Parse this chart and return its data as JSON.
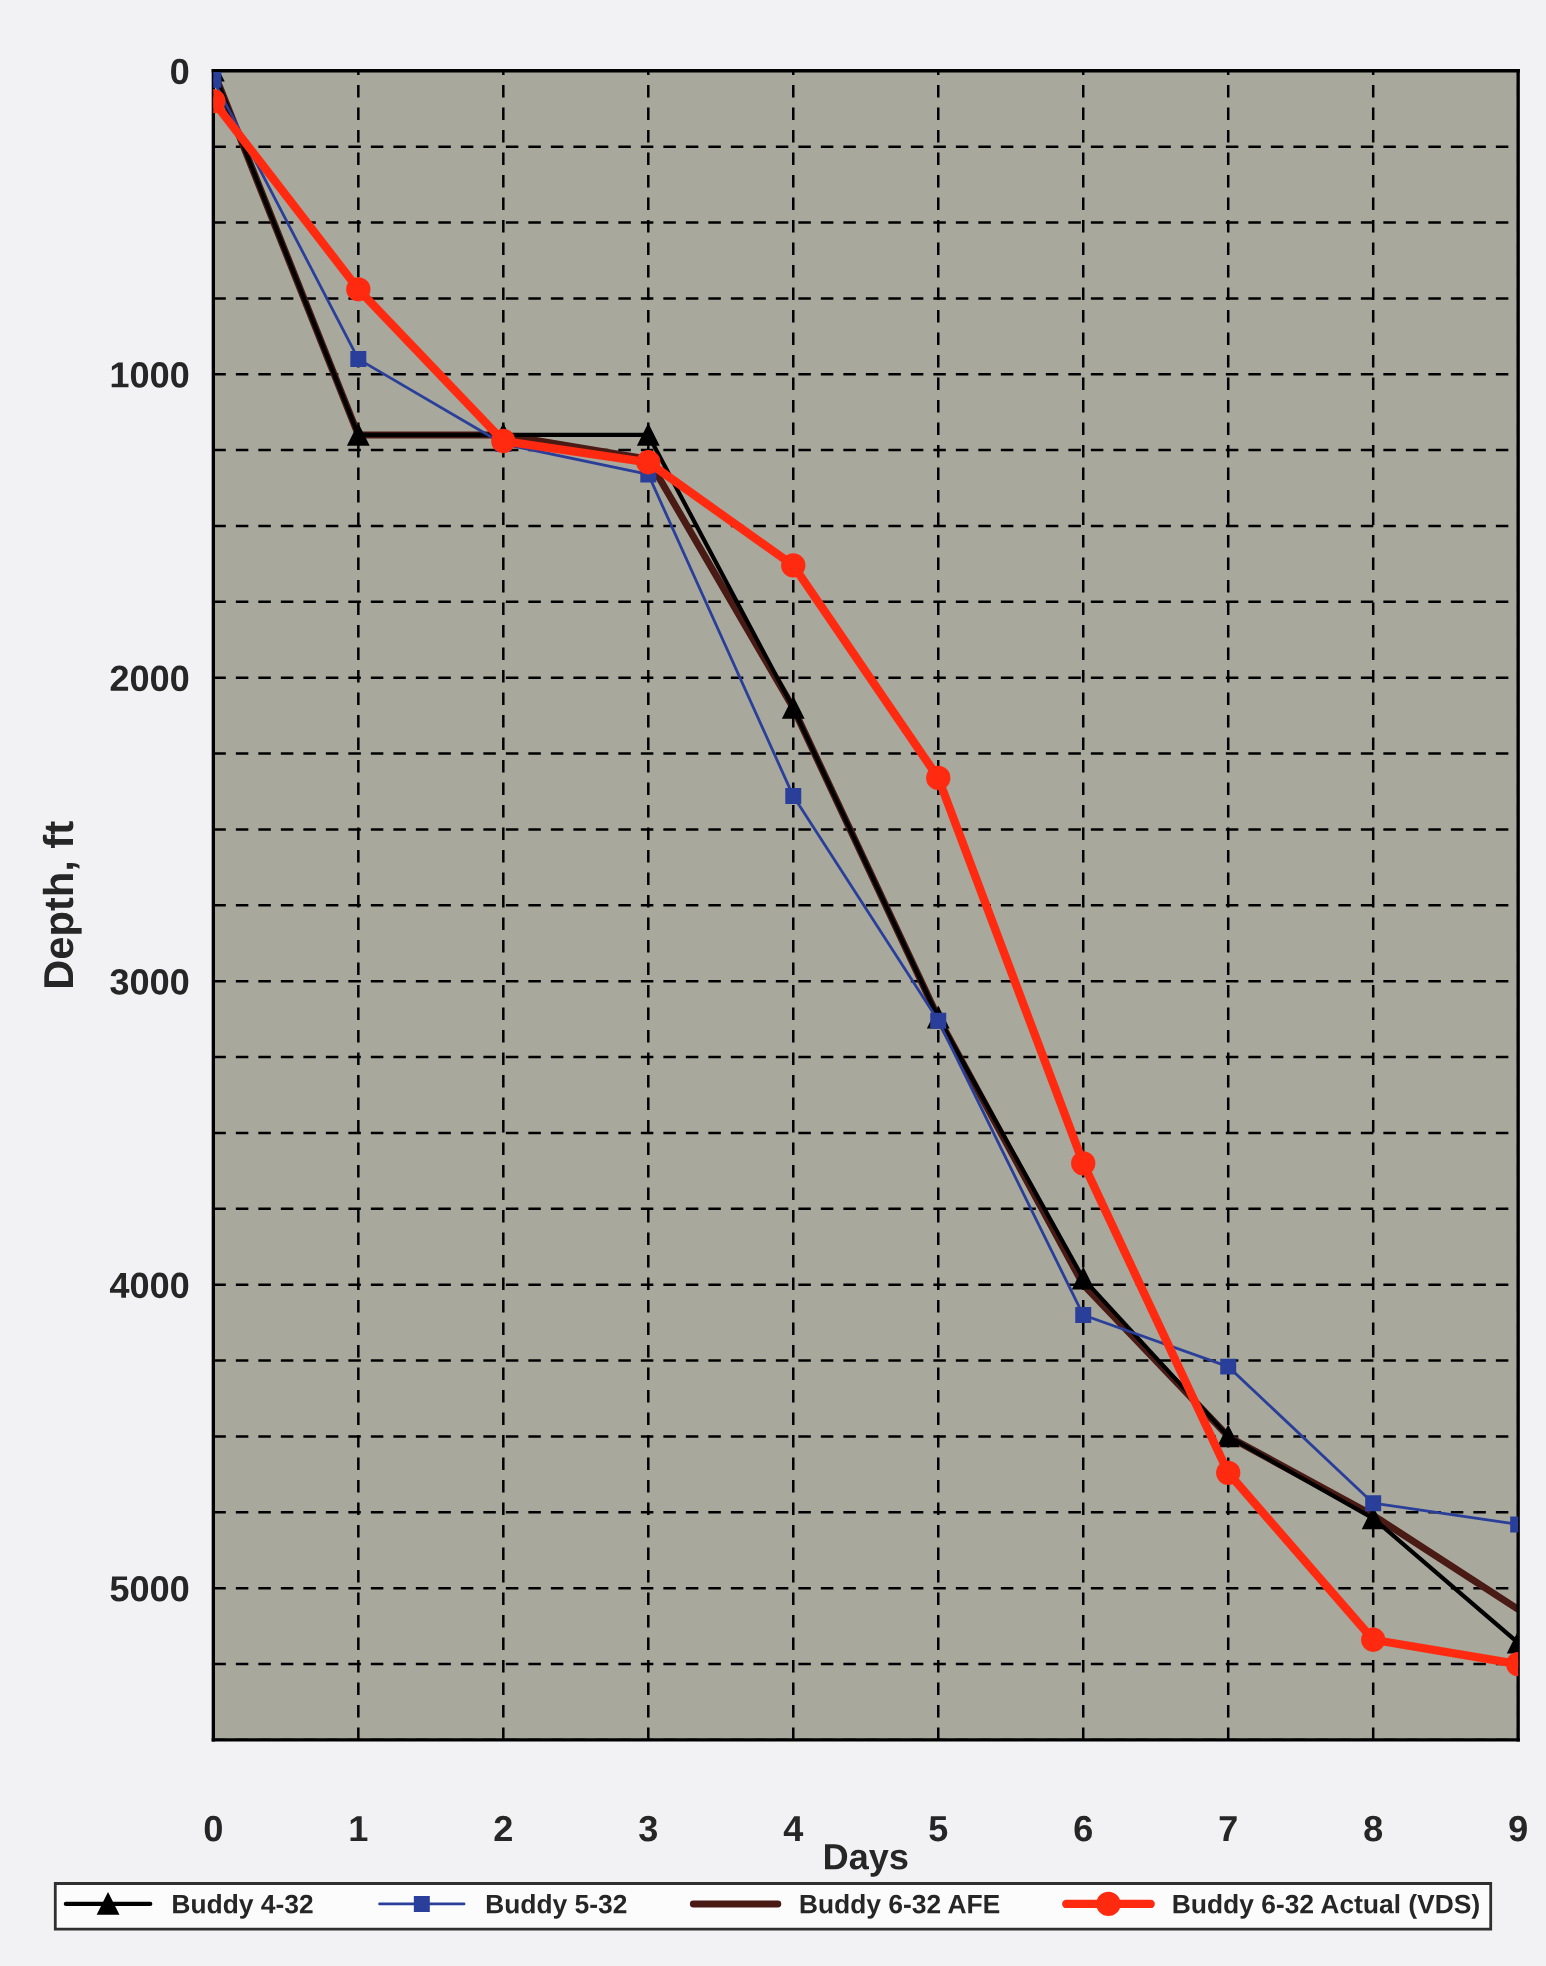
{
  "chart_data": {
    "type": "line",
    "xlabel": "Days",
    "ylabel": "Depth, ft",
    "x": [
      0,
      1,
      2,
      3,
      4,
      5,
      6,
      7,
      8,
      9
    ],
    "xlim": [
      0,
      9
    ],
    "xticks": [
      0,
      1,
      2,
      3,
      4,
      5,
      6,
      7,
      8,
      9
    ],
    "ylim": [
      5500,
      0
    ],
    "yticks": [
      0,
      {
        "value": 250,
        "label": null
      },
      {
        "value": 500,
        "label": null
      },
      {
        "value": 750,
        "label": null
      },
      1000,
      {
        "value": 1250,
        "label": null
      },
      {
        "value": 1500,
        "label": null
      },
      {
        "value": 1750,
        "label": null
      },
      2000,
      {
        "value": 2250,
        "label": null
      },
      {
        "value": 2500,
        "label": null
      },
      {
        "value": 2750,
        "label": null
      },
      3000,
      {
        "value": 3250,
        "label": null
      },
      {
        "value": 3500,
        "label": null
      },
      {
        "value": 3750,
        "label": null
      },
      4000,
      {
        "value": 4250,
        "label": null
      },
      {
        "value": 4500,
        "label": null
      },
      {
        "value": 4750,
        "label": null
      },
      5000,
      {
        "value": 5250,
        "label": null
      },
      {
        "value": 5500,
        "label": null
      }
    ],
    "grid": true,
    "legend": "bottom",
    "line_style": "solid",
    "series": [
      {
        "name": "Buddy 4-32",
        "color": "#000000",
        "marker": "triangle",
        "values": [
          0,
          1200,
          1200,
          1200,
          2100,
          3120,
          3980,
          4500,
          4770,
          5180
        ]
      },
      {
        "name": "Buddy 5-32",
        "color": "#2a3f9a",
        "marker": "square",
        "values": [
          30,
          950,
          1230,
          1330,
          2390,
          3130,
          4100,
          4270,
          4720,
          4790
        ]
      },
      {
        "name": "Buddy 6-32 AFE",
        "color": "#4a1a14",
        "marker": "none",
        "values": [
          0,
          1200,
          1200,
          1280,
          2100,
          3120,
          4000,
          4500,
          4760,
          5070
        ]
      },
      {
        "name": "Buddy 6-32 Actual (VDS)",
        "color": "#ff2a10",
        "marker": "circle",
        "values": [
          100,
          720,
          1220,
          1290,
          1630,
          2330,
          3600,
          4620,
          5170,
          5250
        ]
      }
    ]
  }
}
